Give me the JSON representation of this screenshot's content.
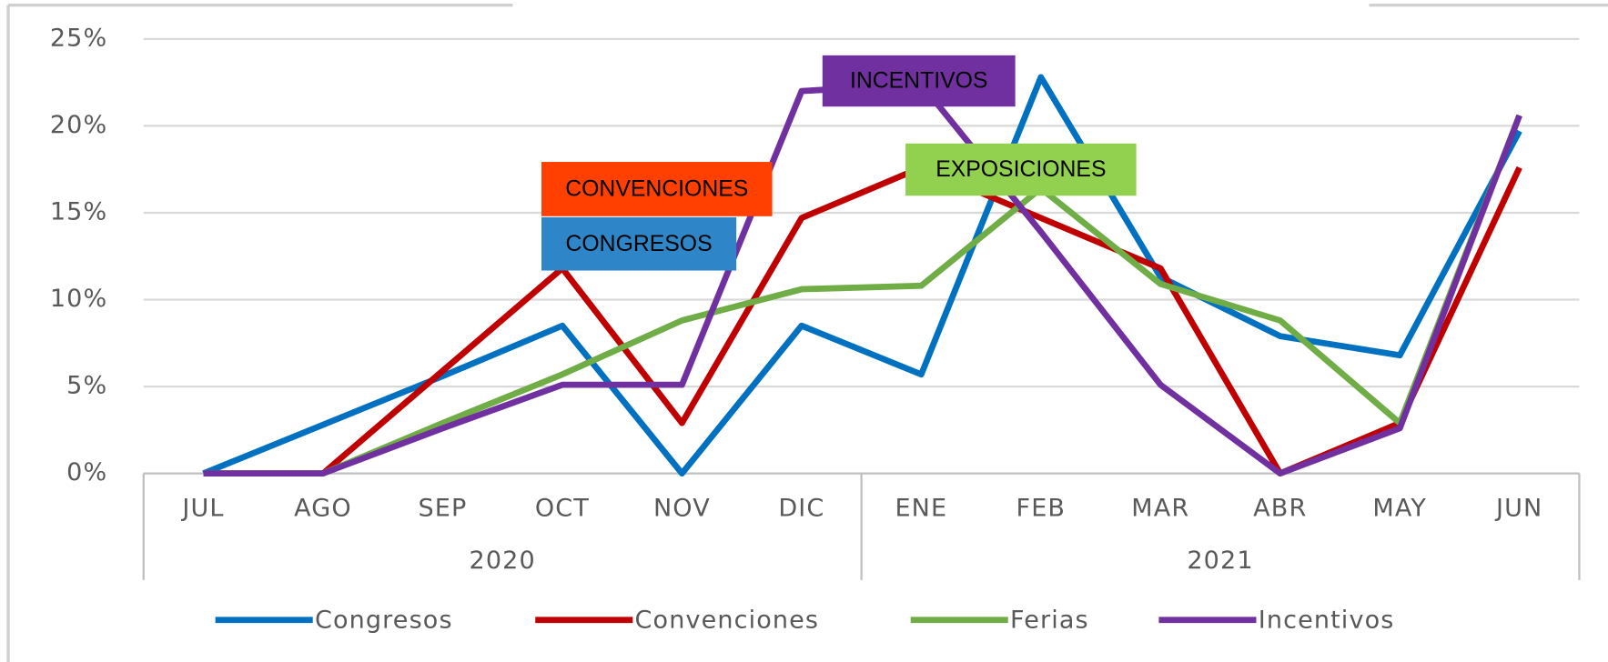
{
  "chart_data": {
    "type": "line",
    "categories": [
      "JUL",
      "AGO",
      "SEP",
      "OCT",
      "NOV",
      "DIC",
      "ENE",
      "FEB",
      "MAR",
      "ABR",
      "MAY",
      "JUN"
    ],
    "x_groups": [
      {
        "label": "2020",
        "span": 6
      },
      {
        "label": "2021",
        "span": 6
      }
    ],
    "series": [
      {
        "name": "Congresos",
        "color": "#0070c0",
        "values": [
          0,
          2.8,
          5.6,
          8.5,
          0,
          8.5,
          5.7,
          22.8,
          11.3,
          7.9,
          6.8,
          19.7
        ]
      },
      {
        "name": "Convenciones",
        "color": "#c00000",
        "values": [
          0,
          0,
          5.9,
          11.8,
          2.9,
          14.7,
          17.6,
          14.7,
          11.8,
          0,
          2.9,
          17.6
        ]
      },
      {
        "name": "Ferias",
        "color": "#70ad47",
        "values": [
          0,
          0,
          2.9,
          5.7,
          8.8,
          10.6,
          10.8,
          16.4,
          10.9,
          8.8,
          2.9,
          20.6
        ]
      },
      {
        "name": "Incentivos",
        "color": "#7030a0",
        "values": [
          0,
          0,
          2.6,
          5.1,
          5.1,
          22,
          22.4,
          13.9,
          5.1,
          0,
          2.6,
          20.6
        ]
      }
    ],
    "ylim": [
      0,
      25
    ],
    "yticks": [
      {
        "value": 0,
        "label": "0%"
      },
      {
        "value": 5,
        "label": "5%"
      },
      {
        "value": 10,
        "label": "10%"
      },
      {
        "value": 15,
        "label": "15%"
      },
      {
        "value": 20,
        "label": "20%"
      },
      {
        "value": 25,
        "label": "25%"
      }
    ],
    "grid": true,
    "legend": "bottom",
    "annotations": [
      {
        "text": "INCENTIVOS",
        "color": "#7030a0"
      },
      {
        "text": "CONVENCIONES",
        "color": "#ff4000"
      },
      {
        "text": "CONGRESOS",
        "color": "#2e86c8"
      },
      {
        "text": "EXPOSICIONES",
        "color": "#92d050"
      }
    ]
  }
}
